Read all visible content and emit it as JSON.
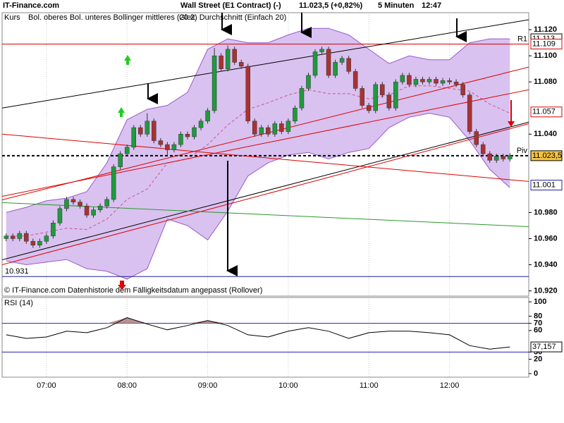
{
  "header": {
    "brand": "IT-Finance.com",
    "title": "Wall Street (E1 Contract) (-)",
    "quote": "11.023,5 (+0,82%)",
    "interval": "5 Minuten",
    "time": "12:47"
  },
  "chart_data": [
    {
      "type": "candlestick",
      "note": "© IT-Finance.com  Datenhistorie dem Fälligkeitsdatum angepasst (Rollover)",
      "xlim": [
        387,
        779
      ],
      "xticks": [
        {
          "value": 420,
          "label": "07:00"
        },
        {
          "value": 480,
          "label": "08:00"
        },
        {
          "value": 540,
          "label": "09:00"
        },
        {
          "value": 600,
          "label": "10:00"
        },
        {
          "value": 660,
          "label": "11:00"
        },
        {
          "value": 720,
          "label": "12:00"
        }
      ],
      "grid": true,
      "ylim": [
        10.916,
        11.133
      ],
      "yticks": [
        {
          "value": 11.12,
          "label": "11.120"
        },
        {
          "value": 11.1,
          "label": "11.100"
        },
        {
          "value": 11.08,
          "label": "11.080"
        },
        {
          "value": 11.04,
          "label": "11.040"
        },
        {
          "value": 10.98,
          "label": "10.980"
        },
        {
          "value": 10.96,
          "label": "10.960"
        },
        {
          "value": 10.94,
          "label": "10.940"
        },
        {
          "value": 10.92,
          "label": "10.920"
        }
      ],
      "candles": {
        "name": "Kurs",
        "up_color": "#1f9a3c",
        "down_color": "#a83232",
        "x": [
          390,
          395,
          400,
          405,
          410,
          415,
          420,
          425,
          430,
          435,
          440,
          445,
          450,
          455,
          460,
          465,
          470,
          475,
          480,
          485,
          490,
          495,
          500,
          505,
          510,
          515,
          520,
          525,
          530,
          535,
          540,
          545,
          550,
          555,
          560,
          565,
          570,
          575,
          580,
          585,
          590,
          595,
          600,
          605,
          610,
          615,
          620,
          625,
          630,
          635,
          640,
          645,
          650,
          655,
          660,
          665,
          670,
          675,
          680,
          685,
          690,
          695,
          700,
          705,
          710,
          715,
          720,
          725,
          730,
          735,
          740,
          745,
          750,
          755,
          760,
          765
        ],
        "open": [
          10.96,
          10.962,
          10.96,
          10.964,
          10.958,
          10.955,
          10.958,
          10.962,
          10.972,
          10.983,
          10.99,
          10.988,
          10.985,
          10.978,
          10.982,
          10.985,
          10.99,
          11.015,
          11.025,
          11.03,
          11.045,
          11.04,
          11.05,
          11.035,
          11.032,
          11.028,
          11.032,
          11.04,
          11.038,
          11.045,
          11.05,
          11.058,
          11.1,
          11.09,
          11.105,
          11.095,
          11.092,
          11.05,
          11.04,
          11.045,
          11.04,
          11.048,
          11.042,
          11.05,
          11.06,
          11.075,
          11.085,
          11.103,
          11.105,
          11.085,
          11.095,
          11.098,
          11.088,
          11.075,
          11.062,
          11.058,
          11.078,
          11.07,
          11.06,
          11.08,
          11.085,
          11.078,
          11.082,
          11.08,
          11.082,
          11.079,
          11.081,
          11.08,
          11.078,
          11.07,
          11.042,
          11.032,
          11.025,
          11.02,
          11.023,
          11.021
        ],
        "high": [
          10.964,
          10.964,
          10.966,
          10.966,
          10.96,
          10.96,
          10.964,
          10.974,
          10.985,
          10.992,
          10.992,
          10.99,
          10.987,
          10.984,
          10.987,
          10.992,
          11.017,
          11.027,
          11.032,
          11.047,
          11.047,
          11.056,
          11.052,
          11.037,
          11.034,
          11.034,
          11.042,
          11.042,
          11.047,
          11.052,
          11.06,
          11.106,
          11.102,
          11.108,
          11.107,
          11.097,
          11.094,
          11.052,
          11.047,
          11.047,
          11.05,
          11.05,
          11.052,
          11.062,
          11.077,
          11.087,
          11.105,
          11.107,
          11.107,
          11.097,
          11.1,
          11.1,
          11.09,
          11.077,
          11.064,
          11.08,
          11.08,
          11.072,
          11.082,
          11.087,
          11.087,
          11.084,
          11.084,
          11.084,
          11.084,
          11.083,
          11.083,
          11.082,
          11.08,
          11.072,
          11.044,
          11.034,
          11.027,
          11.025,
          11.025,
          11.0255
        ],
        "low": [
          10.958,
          10.958,
          10.958,
          10.956,
          10.953,
          10.953,
          10.956,
          10.96,
          10.97,
          10.981,
          10.986,
          10.983,
          10.976,
          10.976,
          10.98,
          10.983,
          10.988,
          11.013,
          11.023,
          11.028,
          11.038,
          11.038,
          11.033,
          11.03,
          11.024,
          11.026,
          11.03,
          11.036,
          11.036,
          11.043,
          11.048,
          11.056,
          11.088,
          11.088,
          11.093,
          11.09,
          11.048,
          11.038,
          11.038,
          11.038,
          11.038,
          11.04,
          11.04,
          11.048,
          11.058,
          11.073,
          11.083,
          11.101,
          11.083,
          11.083,
          11.093,
          11.086,
          11.073,
          11.06,
          11.056,
          11.056,
          11.068,
          11.058,
          11.058,
          11.078,
          11.076,
          11.076,
          11.078,
          11.078,
          11.077,
          11.077,
          11.078,
          11.076,
          11.068,
          11.04,
          11.03,
          11.023,
          11.018,
          11.018,
          11.019,
          11.019
        ],
        "close": [
          10.962,
          10.96,
          10.964,
          10.958,
          10.955,
          10.958,
          10.962,
          10.972,
          10.983,
          10.99,
          10.988,
          10.985,
          10.978,
          10.982,
          10.985,
          10.99,
          11.015,
          11.025,
          11.03,
          11.045,
          11.04,
          11.05,
          11.035,
          11.032,
          11.028,
          11.032,
          11.04,
          11.038,
          11.045,
          11.05,
          11.058,
          11.1,
          11.09,
          11.105,
          11.095,
          11.092,
          11.05,
          11.04,
          11.045,
          11.04,
          11.048,
          11.042,
          11.05,
          11.06,
          11.075,
          11.085,
          11.103,
          11.105,
          11.085,
          11.095,
          11.098,
          11.088,
          11.075,
          11.062,
          11.058,
          11.078,
          11.07,
          11.06,
          11.08,
          11.085,
          11.078,
          11.082,
          11.08,
          11.082,
          11.079,
          11.081,
          11.08,
          11.078,
          11.07,
          11.042,
          11.032,
          11.025,
          11.02,
          11.023,
          11.021,
          11.0235
        ]
      },
      "bands": {
        "name": "Bol. oberes Bol. unteres Bollinger mittleres (20 2)",
        "color": "#9b59c9",
        "fill": "#d9c2f0",
        "x": [
          390,
          405,
          420,
          435,
          450,
          465,
          480,
          495,
          510,
          525,
          540,
          555,
          570,
          585,
          600,
          615,
          630,
          645,
          660,
          675,
          690,
          705,
          720,
          735,
          750,
          765
        ],
        "upper": [
          10.98,
          10.984,
          10.989,
          10.991,
          10.996,
          11.018,
          11.051,
          11.059,
          11.062,
          11.072,
          11.105,
          11.113,
          11.11,
          11.11,
          11.116,
          11.121,
          11.121,
          11.116,
          11.105,
          11.094,
          11.1,
          11.097,
          11.097,
          11.11,
          11.113,
          11.113
        ],
        "lower": [
          10.943,
          10.94,
          10.942,
          10.944,
          10.937,
          10.935,
          10.929,
          10.937,
          10.975,
          10.97,
          10.959,
          10.981,
          11.008,
          11.018,
          11.024,
          11.026,
          11.021,
          11.026,
          11.029,
          11.045,
          11.053,
          11.056,
          11.053,
          11.035,
          11.013,
          10.999
        ]
      },
      "moving_average": {
        "name": "Gleit. Durchschnitt (Einfach 20)",
        "color": "#d0508a",
        "values": [
          10.962,
          10.962,
          10.965,
          10.968,
          10.967,
          10.975,
          10.99,
          10.998,
          11.018,
          11.021,
          11.032,
          11.047,
          11.059,
          11.064,
          11.07,
          11.074,
          11.071,
          11.071,
          11.067,
          11.07,
          11.077,
          11.077,
          11.075,
          11.073,
          11.063,
          11.056
        ]
      },
      "trendlines": [
        {
          "color": "#000000",
          "x": [
            387,
            779
          ],
          "y": [
            11.06,
            11.1276
          ]
        },
        {
          "color": "#000000",
          "x": [
            387,
            779
          ],
          "y": [
            10.9438,
            11.0492
          ]
        },
        {
          "color": "#e00000",
          "x": [
            387,
            779
          ],
          "y": [
            10.9897,
            11.0914
          ]
        },
        {
          "color": "#e00000",
          "x": [
            387,
            779
          ],
          "y": [
            10.9924,
            11.074
          ]
        },
        {
          "color": "#e00000",
          "x": [
            387,
            779
          ],
          "y": [
            11.04,
            11.0038
          ]
        },
        {
          "color": "#e00000",
          "x": [
            387,
            779
          ],
          "y": [
            10.94,
            11.048
          ]
        },
        {
          "color": "#2a9a2a",
          "x": [
            387,
            779
          ],
          "y": [
            10.9876,
            10.9692
          ]
        }
      ],
      "levels": [
        {
          "label": "R1",
          "value": 11.109,
          "color": "#e00000"
        },
        {
          "label": "Piv",
          "value": 11.0235,
          "color": "#000000",
          "dashed": true
        },
        {
          "label": "10.931",
          "value": 10.931,
          "color": "#2020a0"
        }
      ],
      "price_tags": [
        {
          "value": 11.113,
          "label": "11.113",
          "color": "#000000",
          "background": "#ffffff"
        },
        {
          "value": 11.109,
          "label": "11.109",
          "color": "#e00000",
          "background": "#ffffff"
        },
        {
          "value": 11.057,
          "label": "11.057",
          "color": "#e00000",
          "background": "#ffffff"
        },
        {
          "value": 11.0235,
          "label": "11.023,5",
          "color": "#000000",
          "background": "#f5c242"
        },
        {
          "value": 11.001,
          "label": "11.001",
          "color": "#2020a0",
          "background": "#ffffff"
        }
      ]
    },
    {
      "type": "line",
      "title": "RSI (14)",
      "color": "#000000",
      "x": [
        390,
        405,
        420,
        435,
        450,
        465,
        480,
        495,
        510,
        525,
        540,
        555,
        570,
        585,
        600,
        615,
        630,
        645,
        660,
        675,
        690,
        705,
        720,
        735,
        750,
        765
      ],
      "values": [
        54,
        49,
        51,
        59,
        57,
        64,
        78,
        69,
        61,
        67,
        74,
        67,
        54,
        51,
        59,
        64,
        59,
        49,
        57,
        59,
        59,
        57,
        54,
        39,
        34,
        37.157
      ],
      "area_color": "#b89090",
      "ylim": [
        -5,
        106
      ],
      "yticks": [
        100,
        80,
        70,
        60,
        30,
        20,
        0
      ],
      "levels": [
        70,
        30
      ],
      "level_color": "#2020c0",
      "tags": [
        {
          "value": 37.157,
          "label": "37,157"
        }
      ]
    }
  ]
}
